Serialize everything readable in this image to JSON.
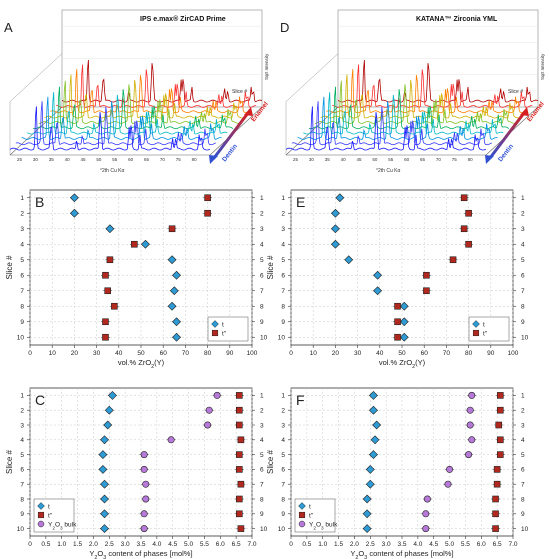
{
  "figure": {
    "panelA": {
      "letter": "A",
      "title": "IPS e.max® ZirCAD Prime",
      "xlabel": "°2th Cu Kα",
      "ylabel": "Slice #",
      "zlabel": "Sqrt Intensity",
      "enamel_label": "Enamel",
      "dentin_label": "Dentin",
      "x_ticks": [
        "25",
        "30",
        "35",
        "40",
        "45",
        "50",
        "55",
        "60",
        "65",
        "70",
        "75",
        "80"
      ]
    },
    "panelD": {
      "letter": "D",
      "title": "KATANA™ Zirconia YML",
      "xlabel": "°2th Cu Kα",
      "ylabel": "Slice #",
      "zlabel": "Sqrt Intensity",
      "enamel_label": "Enamel",
      "dentin_label": "Dentin",
      "x_ticks": [
        "25",
        "30",
        "35",
        "40",
        "45",
        "50",
        "55",
        "60",
        "65",
        "70",
        "75",
        "80"
      ]
    },
    "colors": {
      "t": "#2f9bd4",
      "t2": "#b0281e",
      "y2o3": "#b679d8",
      "enamel": "#d42020",
      "dentin": "#3050d0",
      "slices": [
        "#1818ff",
        "#3a3aff",
        "#0090e0",
        "#00b8c8",
        "#00b060",
        "#80c020",
        "#d0b000",
        "#ff8000",
        "#ff3030",
        "#b00000"
      ]
    }
  },
  "chart_data": [
    {
      "panel": "B",
      "type": "scatter",
      "xlabel": "vol.% ZrO2(Y)",
      "ylabel": "Slice #",
      "xlim": [
        0,
        100
      ],
      "ylim": [
        0.5,
        10.5
      ],
      "x_ticks": [
        0,
        10,
        20,
        30,
        40,
        50,
        60,
        70,
        80,
        90,
        100
      ],
      "y_ticks": [
        1,
        2,
        3,
        4,
        5,
        6,
        7,
        8,
        9,
        10
      ],
      "grid": true,
      "legend": "bottom-right",
      "series": [
        {
          "name": "t",
          "marker": "diamond",
          "x": [
            20,
            20,
            36,
            52,
            64,
            66,
            65,
            64,
            66,
            66
          ],
          "y": [
            1,
            2,
            3,
            4,
            5,
            6,
            7,
            8,
            9,
            10
          ]
        },
        {
          "name": "t''",
          "marker": "square",
          "x": [
            80,
            80,
            64,
            47,
            36,
            34,
            35,
            38,
            34,
            34
          ],
          "y": [
            1,
            2,
            3,
            4,
            5,
            6,
            7,
            8,
            9,
            10
          ]
        }
      ]
    },
    {
      "panel": "E",
      "type": "scatter",
      "xlabel": "vol.% ZrO2(Y)",
      "ylabel": "Slice #",
      "xlim": [
        0,
        100
      ],
      "ylim": [
        0.5,
        10.5
      ],
      "x_ticks": [
        0,
        10,
        20,
        30,
        40,
        50,
        60,
        70,
        80,
        90,
        100
      ],
      "y_ticks": [
        1,
        2,
        3,
        4,
        5,
        6,
        7,
        8,
        9,
        10
      ],
      "grid": true,
      "legend": "bottom-right",
      "series": [
        {
          "name": "t",
          "marker": "diamond",
          "x": [
            22,
            20,
            20,
            20,
            26,
            39,
            39,
            51,
            51,
            51
          ],
          "y": [
            1,
            2,
            3,
            4,
            5,
            6,
            7,
            8,
            9,
            10
          ]
        },
        {
          "name": "t''",
          "marker": "square",
          "x": [
            78,
            80,
            78,
            80,
            73,
            61,
            61,
            48,
            48,
            48
          ],
          "y": [
            1,
            2,
            3,
            4,
            5,
            6,
            7,
            8,
            9,
            10
          ]
        }
      ]
    },
    {
      "panel": "C",
      "type": "scatter",
      "xlabel": "Y2O3 content of phases [mol%]",
      "ylabel": "Slice #",
      "xlim": [
        0,
        7
      ],
      "ylim": [
        0.5,
        10.5
      ],
      "x_ticks": [
        "0",
        "0.5",
        "1.0",
        "1.5",
        "2.0",
        "2.5",
        "3.0",
        "3.5",
        "4.0",
        "4.5",
        "5.0",
        "5.5",
        "6.0",
        "6.5",
        "7.0"
      ],
      "y_ticks": [
        1,
        2,
        3,
        4,
        5,
        6,
        7,
        8,
        9,
        10
      ],
      "grid": true,
      "legend": "bottom-left",
      "series": [
        {
          "name": "t",
          "marker": "diamond",
          "x": [
            2.6,
            2.5,
            2.45,
            2.35,
            2.3,
            2.3,
            2.35,
            2.35,
            2.35,
            2.35
          ],
          "y": [
            1,
            2,
            3,
            4,
            5,
            6,
            7,
            8,
            9,
            10
          ]
        },
        {
          "name": "t''",
          "marker": "square",
          "x": [
            6.6,
            6.6,
            6.6,
            6.65,
            6.6,
            6.6,
            6.65,
            6.6,
            6.6,
            6.65
          ],
          "y": [
            1,
            2,
            3,
            4,
            5,
            6,
            7,
            8,
            9,
            10
          ]
        },
        {
          "name": "Y2O3 bulk",
          "marker": "circle",
          "x": [
            5.9,
            5.65,
            5.6,
            4.45,
            3.6,
            3.6,
            3.65,
            3.65,
            3.6,
            3.6
          ],
          "y": [
            1,
            2,
            3,
            4,
            5,
            6,
            7,
            8,
            9,
            10
          ]
        }
      ]
    },
    {
      "panel": "F",
      "type": "scatter",
      "xlabel": "Y2O3 content of phases [mol%]",
      "ylabel": "Slice #",
      "xlim": [
        0,
        7
      ],
      "ylim": [
        0.5,
        10.5
      ],
      "x_ticks": [
        "0",
        "0.5",
        "1.0",
        "1.5",
        "2.0",
        "2.5",
        "3.0",
        "3.5",
        "4.0",
        "4.5",
        "5.0",
        "5.5",
        "6.0",
        "6.5",
        "7.0"
      ],
      "y_ticks": [
        1,
        2,
        3,
        4,
        5,
        6,
        7,
        8,
        9,
        10
      ],
      "grid": true,
      "legend": "bottom-left",
      "series": [
        {
          "name": "t",
          "marker": "diamond",
          "x": [
            2.6,
            2.6,
            2.7,
            2.65,
            2.6,
            2.5,
            2.5,
            2.4,
            2.4,
            2.4
          ],
          "y": [
            1,
            2,
            3,
            4,
            5,
            6,
            7,
            8,
            9,
            10
          ]
        },
        {
          "name": "t''",
          "marker": "square",
          "x": [
            6.6,
            6.6,
            6.55,
            6.6,
            6.6,
            6.5,
            6.5,
            6.45,
            6.45,
            6.45
          ],
          "y": [
            1,
            2,
            3,
            4,
            5,
            6,
            7,
            8,
            9,
            10
          ]
        },
        {
          "name": "Y2O3 bulk",
          "marker": "circle",
          "x": [
            5.7,
            5.65,
            5.65,
            5.7,
            5.6,
            5.0,
            4.95,
            4.3,
            4.25,
            4.25
          ],
          "y": [
            1,
            2,
            3,
            4,
            5,
            6,
            7,
            8,
            9,
            10
          ]
        }
      ]
    }
  ]
}
